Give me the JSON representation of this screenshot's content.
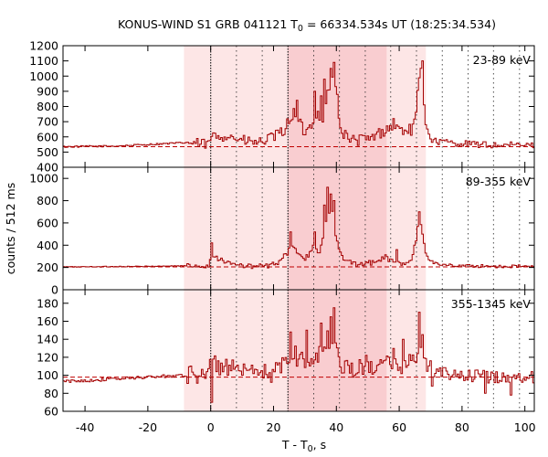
{
  "title": {
    "prefix": "KONUS-WIND S1 GRB 041121 T",
    "prefix_sub": "0",
    "suffix": " = 66334.534s UT (18:25:34.534)"
  },
  "xlabel": {
    "prefix": "T - T",
    "sub": "0",
    "suffix": ", s"
  },
  "ylabel": "counts / 512 ms",
  "colors": {
    "curve": "#a40000",
    "background_line": "#c00000",
    "shade_light": "#fde6e6",
    "shade_dark": "#f9cdd0",
    "frame": "#000000"
  },
  "chart_data": {
    "type": "line",
    "step": true,
    "xlim": [
      -47,
      103
    ],
    "x_ticks": [
      -40,
      -20,
      0,
      20,
      40,
      60,
      80,
      100
    ],
    "shaded_intervals": [
      {
        "x0": -8.5,
        "x1": 68.5,
        "shade": "light"
      },
      {
        "x0": 24.5,
        "x1": 56,
        "shade": "dark"
      }
    ],
    "vertical_lines": [
      {
        "x": 0,
        "style": "dense"
      },
      {
        "x": 8.2,
        "style": "sparse"
      },
      {
        "x": 16.4,
        "style": "sparse"
      },
      {
        "x": 24.6,
        "style": "dense"
      },
      {
        "x": 32.8,
        "style": "sparse"
      },
      {
        "x": 41,
        "style": "sparse"
      },
      {
        "x": 49.2,
        "style": "sparse"
      },
      {
        "x": 57.3,
        "style": "sparse"
      },
      {
        "x": 65.5,
        "style": "sparse"
      },
      {
        "x": 73.7,
        "style": "sparse"
      },
      {
        "x": 81.9,
        "style": "sparse"
      },
      {
        "x": 90,
        "style": "sparse"
      },
      {
        "x": 98.3,
        "style": "sparse"
      }
    ],
    "panels": [
      {
        "band": "23-89 keV",
        "ylim": [
          400,
          1200
        ],
        "y_ticks": [
          400,
          500,
          600,
          700,
          800,
          900,
          1000,
          1100,
          1200
        ],
        "background": 535,
        "noise": 22,
        "knots": [
          [
            -47,
            535
          ],
          [
            -30,
            540
          ],
          [
            -20,
            550
          ],
          [
            -8,
            562
          ],
          [
            -1,
            550
          ],
          [
            0,
            600
          ],
          [
            5,
            610
          ],
          [
            10,
            575
          ],
          [
            15,
            560
          ],
          [
            20,
            600
          ],
          [
            23,
            640
          ],
          [
            26,
            760
          ],
          [
            28,
            690
          ],
          [
            30,
            620
          ],
          [
            32,
            700
          ],
          [
            34,
            790
          ],
          [
            35,
            650
          ],
          [
            37,
            880
          ],
          [
            38,
            930
          ],
          [
            39,
            1000
          ],
          [
            40,
            840
          ],
          [
            41,
            650
          ],
          [
            43,
            600
          ],
          [
            46,
            570
          ],
          [
            48,
            590
          ],
          [
            50,
            580
          ],
          [
            53,
            620
          ],
          [
            55,
            640
          ],
          [
            58,
            680
          ],
          [
            60,
            650
          ],
          [
            62,
            640
          ],
          [
            64,
            650
          ],
          [
            65,
            720
          ],
          [
            66,
            950
          ],
          [
            67,
            1050
          ],
          [
            68,
            720
          ],
          [
            70,
            580
          ],
          [
            72,
            570
          ],
          [
            80,
            555
          ],
          [
            90,
            545
          ],
          [
            103,
            545
          ]
        ],
        "spikes": [
          [
            27,
            840
          ],
          [
            33,
            900
          ],
          [
            35,
            870
          ],
          [
            36,
            980
          ],
          [
            38,
            1050
          ],
          [
            39,
            1090
          ],
          [
            40,
            880
          ],
          [
            58,
            720
          ],
          [
            67,
            1100
          ]
        ]
      },
      {
        "band": "89-355 keV",
        "ylim": [
          0,
          1100
        ],
        "y_ticks": [
          0,
          200,
          400,
          600,
          800,
          1000
        ],
        "background": 205,
        "noise": 14,
        "knots": [
          [
            -47,
            205
          ],
          [
            -20,
            210
          ],
          [
            -8,
            215
          ],
          [
            -1,
            215
          ],
          [
            0,
            300
          ],
          [
            3,
            280
          ],
          [
            6,
            230
          ],
          [
            12,
            210
          ],
          [
            18,
            215
          ],
          [
            22,
            250
          ],
          [
            24,
            330
          ],
          [
            26,
            400
          ],
          [
            28,
            300
          ],
          [
            30,
            280
          ],
          [
            32,
            350
          ],
          [
            33,
            420
          ],
          [
            34,
            300
          ],
          [
            35,
            420
          ],
          [
            36,
            550
          ],
          [
            37,
            650
          ],
          [
            38,
            720
          ],
          [
            39,
            620
          ],
          [
            40,
            420
          ],
          [
            42,
            260
          ],
          [
            46,
            230
          ],
          [
            50,
            240
          ],
          [
            52,
            240
          ],
          [
            55,
            300
          ],
          [
            57,
            260
          ],
          [
            60,
            230
          ],
          [
            62,
            240
          ],
          [
            64,
            280
          ],
          [
            66,
            600
          ],
          [
            67,
            560
          ],
          [
            68,
            350
          ],
          [
            70,
            250
          ],
          [
            73,
            225
          ],
          [
            80,
            215
          ],
          [
            90,
            210
          ],
          [
            103,
            210
          ]
        ],
        "spikes": [
          [
            0,
            420
          ],
          [
            25,
            520
          ],
          [
            33,
            520
          ],
          [
            36,
            760
          ],
          [
            37,
            920
          ],
          [
            38,
            860
          ],
          [
            39,
            800
          ],
          [
            59,
            360
          ],
          [
            66,
            700
          ]
        ]
      },
      {
        "band": "355-1345 keV",
        "ylim": [
          60,
          195
        ],
        "y_ticks": [
          60,
          80,
          100,
          120,
          140,
          160,
          180
        ],
        "background": 98,
        "noise": 7,
        "knots": [
          [
            -47,
            93
          ],
          [
            -30,
            96
          ],
          [
            -10,
            100
          ],
          [
            -5,
            100
          ],
          [
            0,
            110
          ],
          [
            4,
            112
          ],
          [
            8,
            104
          ],
          [
            12,
            100
          ],
          [
            20,
            103
          ],
          [
            24,
            115
          ],
          [
            26,
            125
          ],
          [
            29,
            118
          ],
          [
            32,
            115
          ],
          [
            34,
            125
          ],
          [
            36,
            135
          ],
          [
            38,
            140
          ],
          [
            40,
            128
          ],
          [
            42,
            110
          ],
          [
            46,
            105
          ],
          [
            50,
            112
          ],
          [
            54,
            108
          ],
          [
            58,
            118
          ],
          [
            62,
            110
          ],
          [
            65,
            120
          ],
          [
            66,
            135
          ],
          [
            67,
            140
          ],
          [
            68,
            112
          ],
          [
            72,
            102
          ],
          [
            80,
            100
          ],
          [
            90,
            98
          ],
          [
            103,
            98
          ]
        ],
        "spikes": [
          [
            0,
            70
          ],
          [
            25,
            148
          ],
          [
            30,
            150
          ],
          [
            35,
            158
          ],
          [
            38,
            165
          ],
          [
            39,
            175
          ],
          [
            61,
            140
          ],
          [
            66,
            170
          ],
          [
            70,
            88
          ],
          [
            87,
            80
          ],
          [
            95,
            78
          ]
        ]
      }
    ]
  }
}
